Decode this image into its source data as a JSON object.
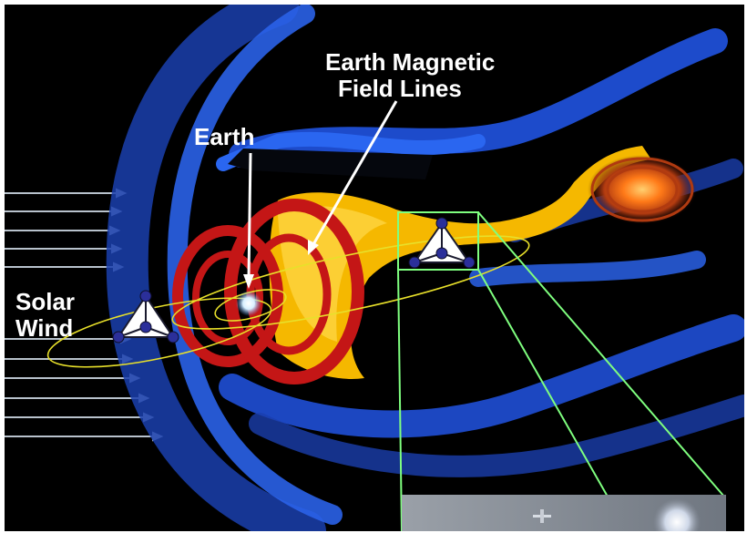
{
  "labels": {
    "field_lines_line1": "Earth Magnetic",
    "field_lines_line2": "Field Lines",
    "earth": "Earth",
    "solar_wind_line1": "Solar",
    "solar_wind_line2": "Wind"
  },
  "colors": {
    "background": "#000000",
    "magnetosheath": "#1f4fd6",
    "field_loops": "#c41616",
    "plasma_sheet": "#f5b800",
    "orbit": "#e8e02a",
    "zoom_box": "#7fff7f",
    "spacecraft_node": "#2b2f9a",
    "solar_wind_arrow": "#b8c2cc"
  },
  "icons": {
    "spacecraft": "tetrahedron-constellation-icon",
    "earth": "earth-glow-icon",
    "inset": "spacecraft-photo-inset"
  }
}
